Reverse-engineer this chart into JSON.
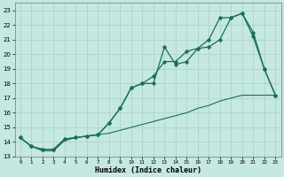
{
  "xlabel": "Humidex (Indice chaleur)",
  "xlim": [
    -0.5,
    23.5
  ],
  "ylim": [
    13,
    23.5
  ],
  "yticks": [
    13,
    14,
    15,
    16,
    17,
    18,
    19,
    20,
    21,
    22,
    23
  ],
  "xticks": [
    0,
    1,
    2,
    3,
    4,
    5,
    6,
    7,
    8,
    9,
    10,
    11,
    12,
    13,
    14,
    15,
    16,
    17,
    18,
    19,
    20,
    21,
    22,
    23
  ],
  "bg_color": "#c5e8e0",
  "line_color": "#1a6e5a",
  "grid_color": "#aacfc8",
  "line1_y": [
    14.3,
    13.7,
    13.5,
    13.5,
    14.2,
    14.3,
    14.4,
    14.5,
    15.3,
    16.3,
    17.7,
    18.0,
    18.0,
    20.5,
    19.3,
    19.5,
    20.4,
    20.5,
    21.0,
    22.5,
    22.8,
    21.5,
    19.0,
    17.2
  ],
  "line2_y": [
    14.3,
    13.7,
    13.5,
    13.5,
    14.2,
    14.3,
    14.4,
    14.5,
    15.3,
    16.3,
    17.7,
    18.0,
    18.5,
    19.5,
    19.5,
    20.2,
    20.4,
    21.0,
    22.5,
    22.5,
    22.8,
    21.2,
    19.0,
    17.2
  ],
  "line3_y": [
    14.3,
    13.7,
    13.4,
    13.4,
    14.1,
    14.3,
    14.4,
    14.5,
    14.6,
    14.8,
    15.0,
    15.2,
    15.4,
    15.6,
    15.8,
    16.0,
    16.3,
    16.5,
    16.8,
    17.0,
    17.2,
    17.2,
    17.2,
    17.2
  ]
}
